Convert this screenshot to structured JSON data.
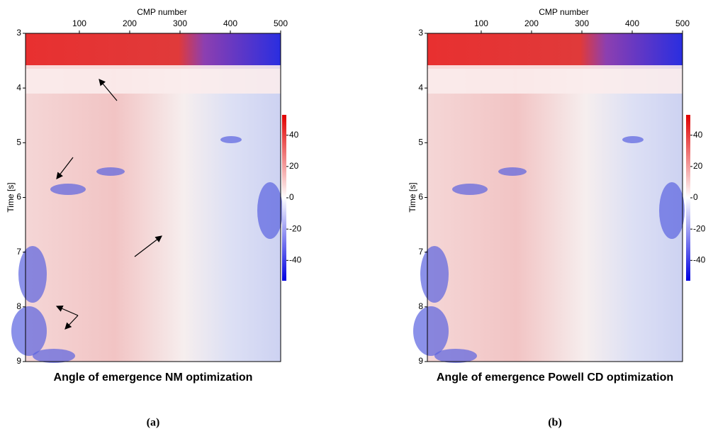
{
  "panels": [
    {
      "title": "Angle of emergence NM optimization",
      "caption": "(a)",
      "x_label": "CMP number",
      "y_label": "Time [s]",
      "xlim": [
        -7,
        500
      ],
      "xticks": [
        100,
        200,
        300,
        400,
        500
      ],
      "ylim": [
        3,
        9
      ],
      "yticks": [
        3,
        4,
        5,
        6,
        7,
        8,
        9
      ],
      "colorbar_lim": [
        -53,
        53
      ],
      "colorbar_ticks": [
        40,
        20,
        0,
        -20,
        -40
      ]
    },
    {
      "title": "Angle of emergence Powell CD optimization",
      "caption": "(b)",
      "x_label": "CMP number",
      "y_label": "Time [s]",
      "xlim": [
        -7,
        500
      ],
      "xticks": [
        100,
        200,
        300,
        400,
        500
      ],
      "ylim": [
        3,
        9
      ],
      "yticks": [
        3,
        4,
        5,
        6,
        7,
        8,
        9
      ],
      "colorbar_lim": [
        -53,
        53
      ],
      "colorbar_ticks": [
        40,
        20,
        0,
        -20,
        -40
      ]
    }
  ]
}
